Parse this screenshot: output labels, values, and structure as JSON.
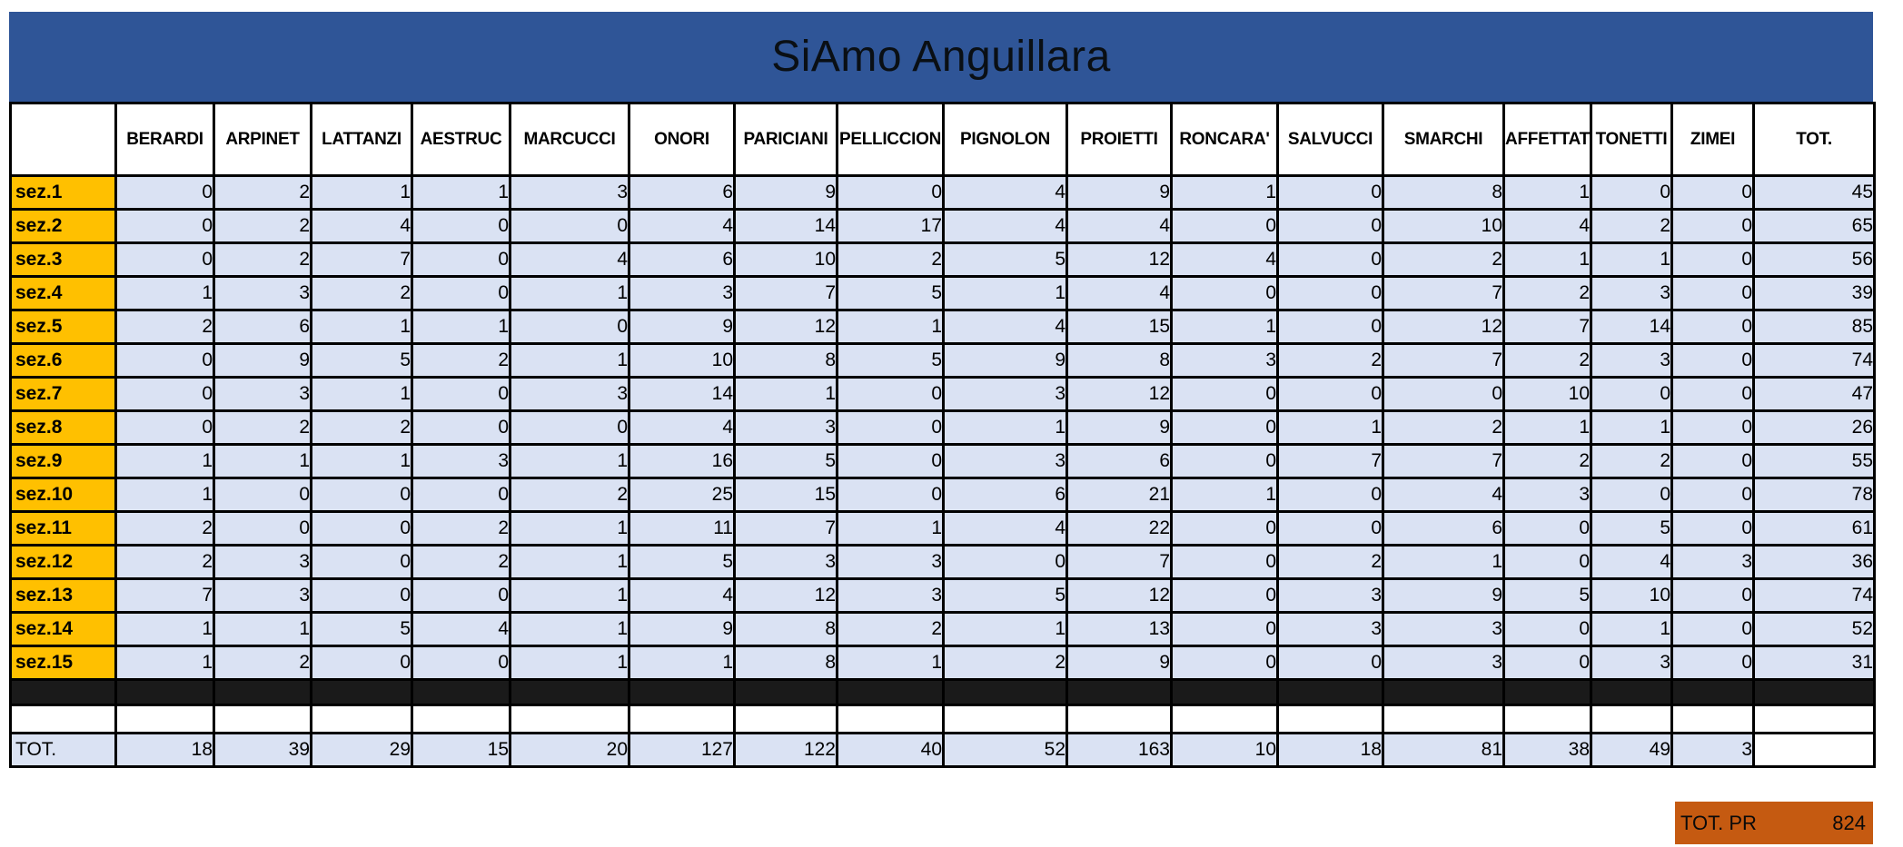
{
  "title": "SiAmo Anguillara",
  "table": {
    "corner_label": "",
    "columns": [
      "BERARDI",
      "ARPINET",
      "LATTANZI",
      "AESTRUC",
      "MARCUCCI",
      "ONORI",
      "PARICIANI",
      "PELLICCION",
      "PIGNOLON",
      "PROIETTI",
      "RONCARA'",
      "SALVUCCI",
      "SMARCHI",
      "AFFETTAT",
      "TONETTI",
      "ZIMEI",
      "TOT."
    ],
    "rows": [
      {
        "label": "sez.1",
        "values": [
          0,
          2,
          1,
          1,
          3,
          6,
          9,
          0,
          4,
          9,
          1,
          0,
          8,
          1,
          0,
          0
        ],
        "total": 45
      },
      {
        "label": "sez.2",
        "values": [
          0,
          2,
          4,
          0,
          0,
          4,
          14,
          17,
          4,
          4,
          0,
          0,
          10,
          4,
          2,
          0
        ],
        "total": 65
      },
      {
        "label": "sez.3",
        "values": [
          0,
          2,
          7,
          0,
          4,
          6,
          10,
          2,
          5,
          12,
          4,
          0,
          2,
          1,
          1,
          0
        ],
        "total": 56
      },
      {
        "label": "sez.4",
        "values": [
          1,
          3,
          2,
          0,
          1,
          3,
          7,
          5,
          1,
          4,
          0,
          0,
          7,
          2,
          3,
          0
        ],
        "total": 39
      },
      {
        "label": "sez.5",
        "values": [
          2,
          6,
          1,
          1,
          0,
          9,
          12,
          1,
          4,
          15,
          1,
          0,
          12,
          7,
          14,
          0
        ],
        "total": 85
      },
      {
        "label": "sez.6",
        "values": [
          0,
          9,
          5,
          2,
          1,
          10,
          8,
          5,
          9,
          8,
          3,
          2,
          7,
          2,
          3,
          0
        ],
        "total": 74
      },
      {
        "label": "sez.7",
        "values": [
          0,
          3,
          1,
          0,
          3,
          14,
          1,
          0,
          3,
          12,
          0,
          0,
          0,
          10,
          0,
          0
        ],
        "total": 47
      },
      {
        "label": "sez.8",
        "values": [
          0,
          2,
          2,
          0,
          0,
          4,
          3,
          0,
          1,
          9,
          0,
          1,
          2,
          1,
          1,
          0
        ],
        "total": 26
      },
      {
        "label": "sez.9",
        "values": [
          1,
          1,
          1,
          3,
          1,
          16,
          5,
          0,
          3,
          6,
          0,
          7,
          7,
          2,
          2,
          0
        ],
        "total": 55
      },
      {
        "label": "sez.10",
        "values": [
          1,
          0,
          0,
          0,
          2,
          25,
          15,
          0,
          6,
          21,
          1,
          0,
          4,
          3,
          0,
          0
        ],
        "total": 78
      },
      {
        "label": "sez.11",
        "values": [
          2,
          0,
          0,
          2,
          1,
          11,
          7,
          1,
          4,
          22,
          0,
          0,
          6,
          0,
          5,
          0
        ],
        "total": 61
      },
      {
        "label": "sez.12",
        "values": [
          2,
          3,
          0,
          2,
          1,
          5,
          3,
          3,
          0,
          7,
          0,
          2,
          1,
          0,
          4,
          3
        ],
        "total": 36
      },
      {
        "label": "sez.13",
        "values": [
          7,
          3,
          0,
          0,
          1,
          4,
          12,
          3,
          5,
          12,
          0,
          3,
          9,
          5,
          10,
          0
        ],
        "total": 74
      },
      {
        "label": "sez.14",
        "values": [
          1,
          1,
          5,
          4,
          1,
          9,
          8,
          2,
          1,
          13,
          0,
          3,
          3,
          0,
          1,
          0
        ],
        "total": 52
      },
      {
        "label": "sez.15",
        "values": [
          1,
          2,
          0,
          0,
          1,
          1,
          8,
          1,
          2,
          9,
          0,
          0,
          3,
          0,
          3,
          0
        ],
        "total": 31
      }
    ],
    "total_row": {
      "label": "TOT.",
      "values": [
        18,
        39,
        29,
        15,
        20,
        127,
        122,
        40,
        52,
        163,
        10,
        18,
        81,
        38,
        49,
        3
      ],
      "total": ""
    }
  },
  "footer": {
    "label": "TOT. PR",
    "value": 824
  },
  "colors": {
    "title_bg": "#2F5597",
    "row_label_bg": "#FFC000",
    "cell_bg": "#DAE2F3",
    "separator_bg": "#1A1A1A",
    "footer_bg": "#C55A11"
  }
}
